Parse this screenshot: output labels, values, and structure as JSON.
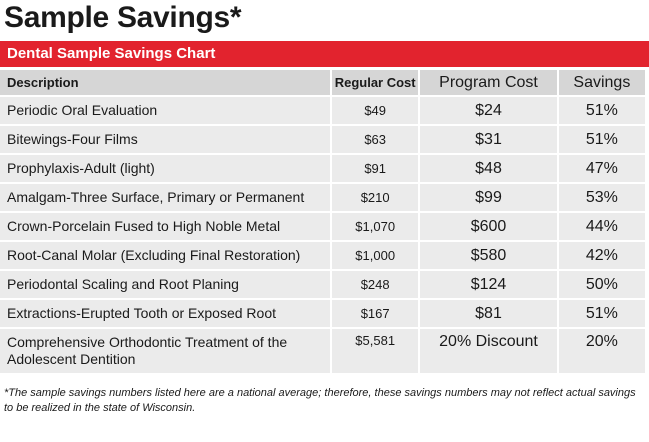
{
  "page": {
    "title": "Sample Savings*"
  },
  "chart": {
    "banner": "Dental Sample Savings Chart",
    "headers": {
      "description": "Description",
      "regular_cost": "Regular Cost",
      "program_cost": "Program Cost",
      "savings": "Savings"
    },
    "rows": [
      {
        "description": "Periodic Oral Evaluation",
        "regular_cost": "$49",
        "program_cost": "$24",
        "savings": "51%"
      },
      {
        "description": "Bitewings-Four Films",
        "regular_cost": "$63",
        "program_cost": "$31",
        "savings": "51%"
      },
      {
        "description": "Prophylaxis-Adult (light)",
        "regular_cost": "$91",
        "program_cost": "$48",
        "savings": "47%"
      },
      {
        "description": "Amalgam-Three Surface, Primary or Permanent",
        "regular_cost": "$210",
        "program_cost": "$99",
        "savings": "53%"
      },
      {
        "description": "Crown-Porcelain Fused to High Noble Metal",
        "regular_cost": "$1,070",
        "program_cost": "$600",
        "savings": "44%"
      },
      {
        "description": "Root-Canal Molar (Excluding Final Restoration)",
        "regular_cost": "$1,000",
        "program_cost": "$580",
        "savings": "42%"
      },
      {
        "description": "Periodontal Scaling and Root Planing",
        "regular_cost": "$248",
        "program_cost": "$124",
        "savings": "50%"
      },
      {
        "description": "Extractions-Erupted Tooth or Exposed Root",
        "regular_cost": "$167",
        "program_cost": "$81",
        "savings": "51%"
      },
      {
        "description": "Comprehensive Orthodontic Treatment of the Adolescent Dentition",
        "regular_cost": "$5,581",
        "program_cost": "20% Discount",
        "savings": "20%"
      }
    ]
  },
  "footnote": "*The sample savings numbers listed here are a national average; therefore, these savings numbers may not reflect actual savings to be realized in the state of Wisconsin.",
  "colors": {
    "banner": "#e2232e",
    "header_cell": "#d6d6d6",
    "body_cell": "#ebebeb"
  }
}
